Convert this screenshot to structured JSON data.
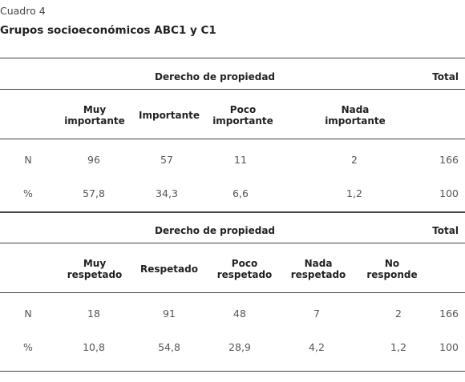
{
  "header": {
    "label": "Cuadro 4",
    "title": "Grupos socioeconómicos ABC1 y C1"
  },
  "tables": [
    {
      "group_header": "Derecho de propiedad",
      "total_header": "Total",
      "columns": [
        [
          "Muy",
          "importante"
        ],
        [
          "Importante"
        ],
        [
          "Poco",
          "importante"
        ],
        [
          "Nada",
          "importante"
        ]
      ],
      "rows": [
        {
          "label": "N",
          "values": [
            "96",
            "57",
            "11",
            "2",
            "166"
          ]
        },
        {
          "label": "%",
          "values": [
            "57,8",
            "34,3",
            "6,6",
            "1,2",
            "100"
          ]
        }
      ]
    },
    {
      "group_header": "Derecho de propiedad",
      "total_header": "Total",
      "columns": [
        [
          "Muy",
          "respetado"
        ],
        [
          "Respetado"
        ],
        [
          "Poco",
          "respetado"
        ],
        [
          "Nada",
          "respetado"
        ],
        [
          "No",
          "responde"
        ]
      ],
      "rows": [
        {
          "label": "N",
          "values": [
            "18",
            "91",
            "48",
            "7",
            "2",
            "166"
          ]
        },
        {
          "label": "%",
          "values": [
            "10,8",
            "54,8",
            "28,9",
            "4,2",
            "1,2",
            "100"
          ]
        }
      ]
    }
  ]
}
